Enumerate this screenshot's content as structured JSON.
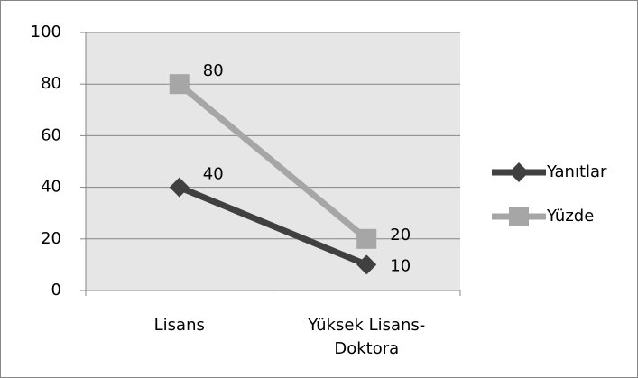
{
  "chart_data": {
    "type": "line",
    "categories": [
      "Lisans",
      "Yüksek Lisans-Doktora"
    ],
    "series": [
      {
        "name": "Yanıtlar",
        "color": "#404040",
        "marker": "diamond",
        "values": [
          40,
          10
        ]
      },
      {
        "name": "Yüzde",
        "color": "#a6a6a6",
        "marker": "square",
        "values": [
          80,
          20
        ]
      }
    ],
    "ylim": [
      0,
      100
    ],
    "yticks": [
      0,
      20,
      40,
      60,
      80,
      100
    ],
    "grid": true,
    "legend": "right"
  }
}
